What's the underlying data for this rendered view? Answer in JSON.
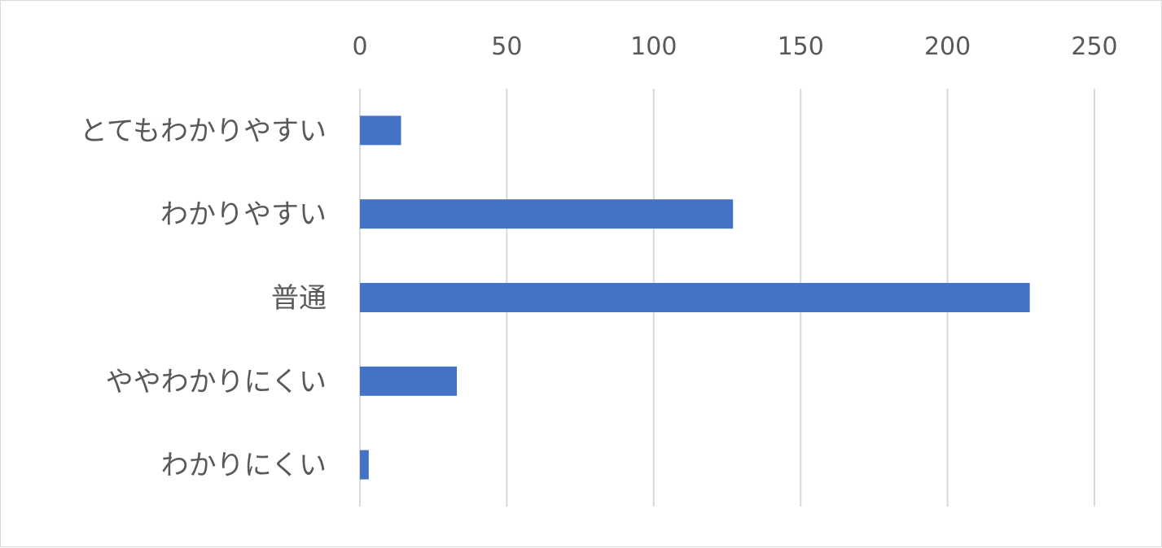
{
  "chart_data": {
    "type": "bar",
    "orientation": "horizontal",
    "categories": [
      "とてもわかりやすい",
      "わかりやすい",
      "普通",
      "ややわかりにくい",
      "わかりにくい"
    ],
    "values": [
      14,
      127,
      228,
      33,
      3
    ],
    "xlim": [
      0,
      250
    ],
    "x_ticks": [
      0,
      50,
      100,
      150,
      200,
      250
    ],
    "x_tick_labels": [
      "0",
      "50",
      "100",
      "150",
      "200",
      "250"
    ],
    "x_axis_position": "top",
    "grid": true,
    "legend": "none",
    "title": "",
    "xlabel": "",
    "ylabel": "",
    "bar_color": "#4472c4",
    "grid_color": "#d9d9d9",
    "label_color": "#595959"
  }
}
